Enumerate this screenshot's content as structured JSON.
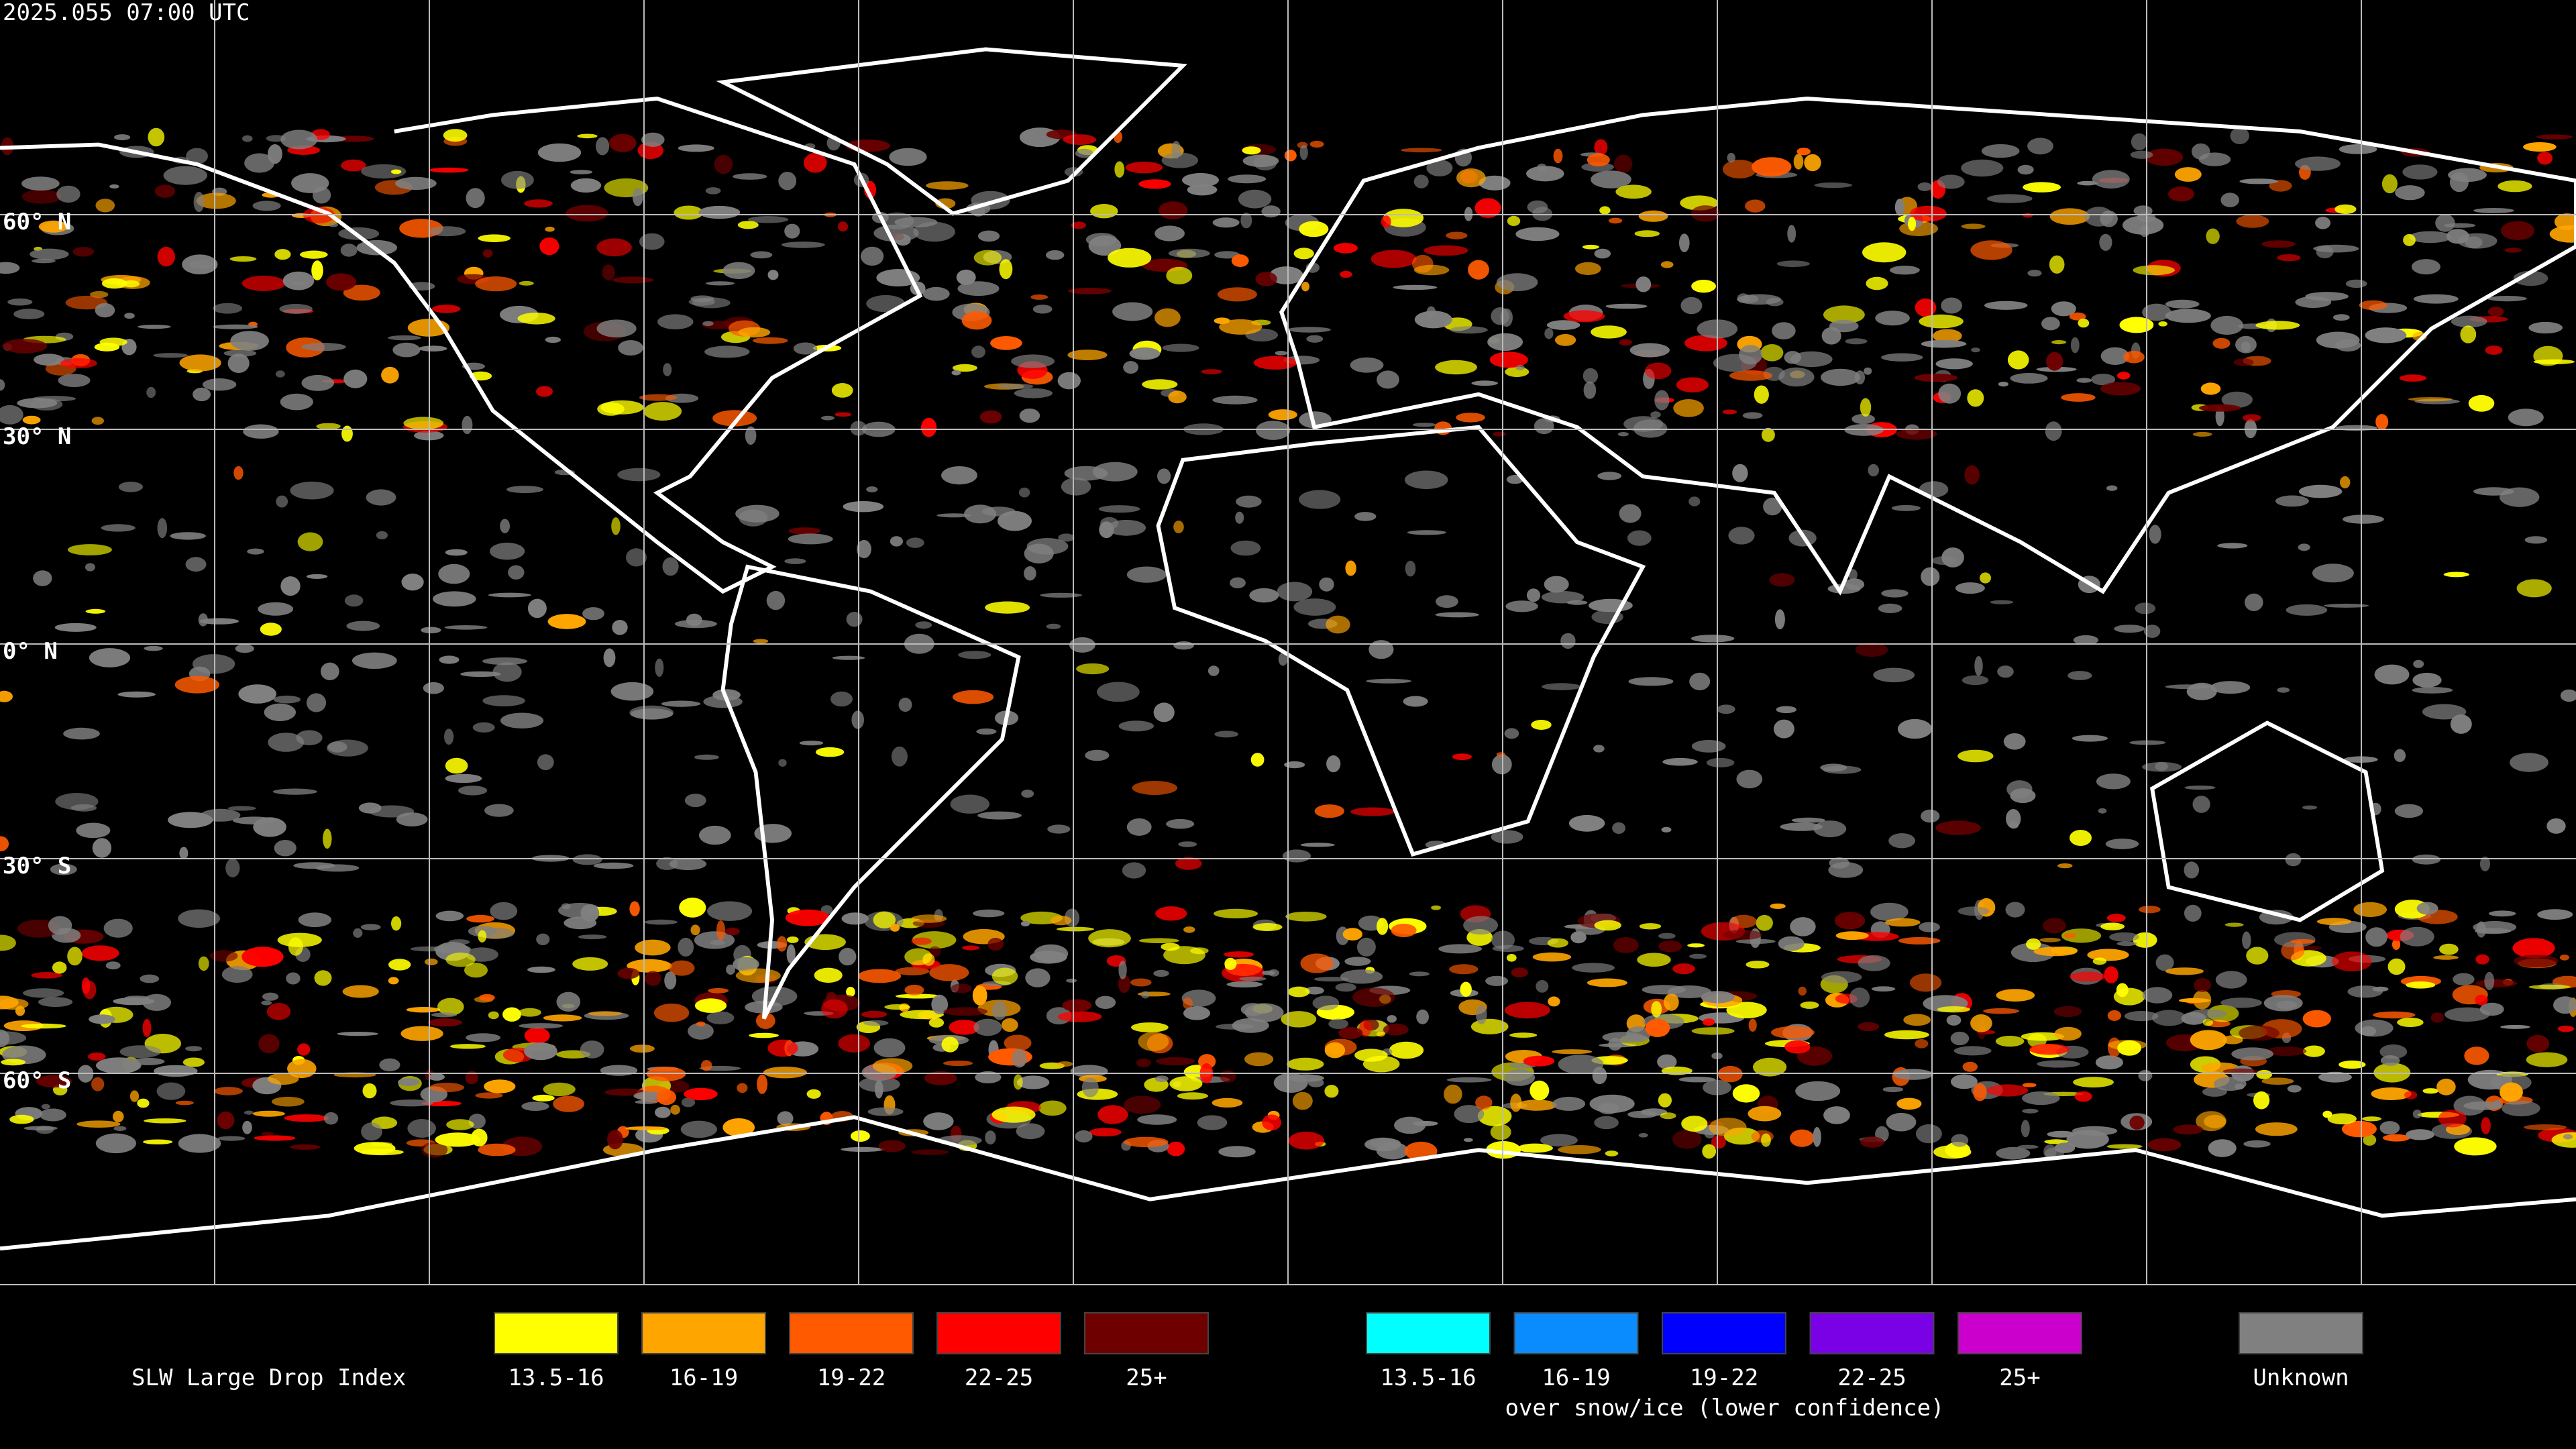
{
  "header": {
    "timestamp": "2025.055 07:00 UTC"
  },
  "map": {
    "latitude_labels": [
      "60° N",
      "30° N",
      "0° N",
      "30° S",
      "60° S"
    ]
  },
  "legend": {
    "title": "SLW Large Drop Index",
    "warm": [
      {
        "label": "13.5-16",
        "color": "#ffff00"
      },
      {
        "label": "16-19",
        "color": "#ffa500"
      },
      {
        "label": "19-22",
        "color": "#ff5a00"
      },
      {
        "label": "22-25",
        "color": "#ff0000"
      },
      {
        "label": "25+",
        "color": "#6e0000"
      }
    ],
    "snow_ice": [
      {
        "label": "13.5-16",
        "color": "#00ffff"
      },
      {
        "label": "16-19",
        "color": "#0a8cff"
      },
      {
        "label": "19-22",
        "color": "#0000ff"
      },
      {
        "label": "22-25",
        "color": "#7a00e6"
      },
      {
        "label": "25+",
        "color": "#cc00cc"
      }
    ],
    "snow_ice_note": "over snow/ice (lower confidence)",
    "unknown": {
      "label": "Unknown",
      "color": "#808080"
    }
  }
}
